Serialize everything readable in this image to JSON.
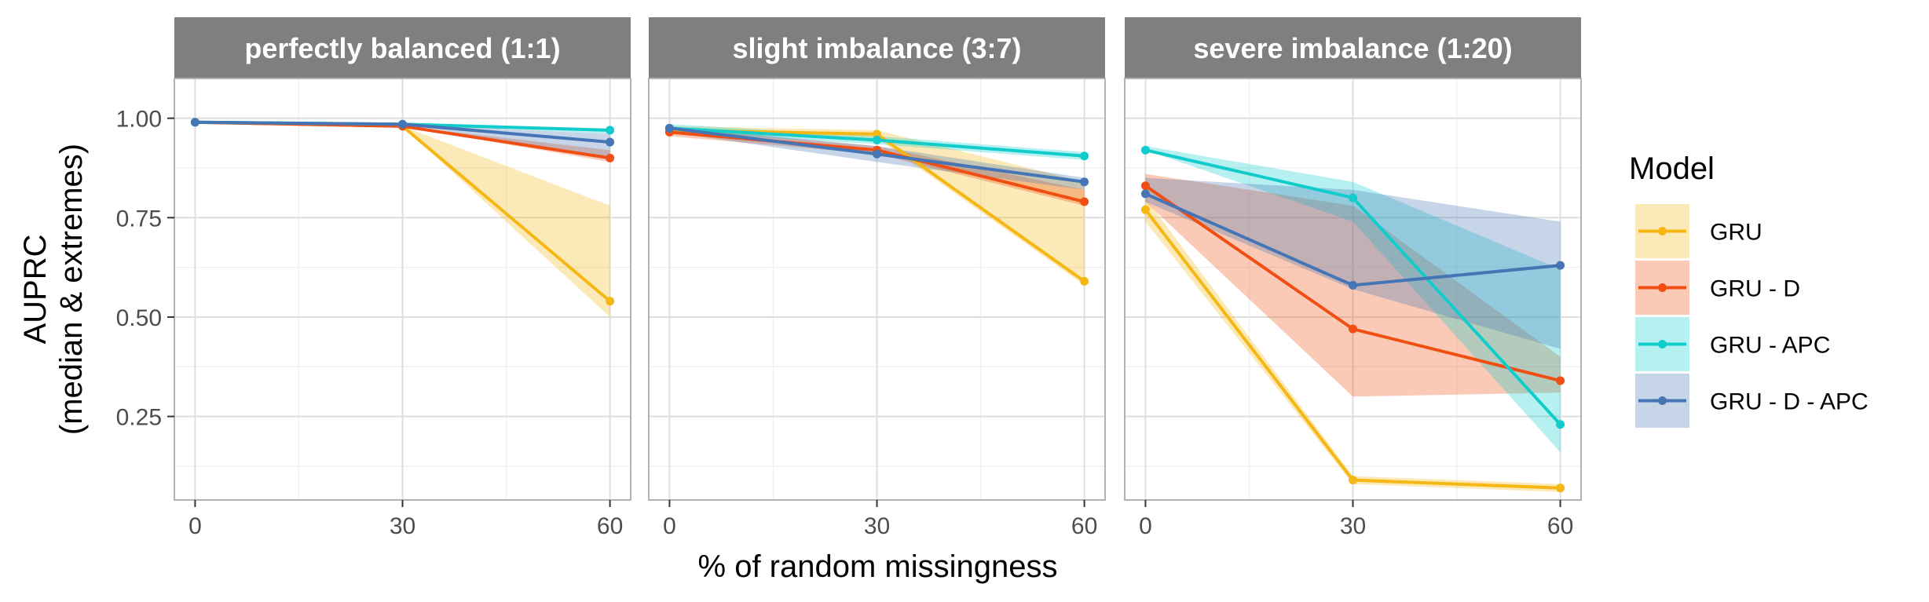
{
  "chart_data": {
    "type": "line",
    "xlabel": "% of random missingness",
    "ylabel": [
      "AUPRC",
      "(median & extremes)"
    ],
    "x": [
      0,
      30,
      60
    ],
    "xlim": [
      -3,
      63
    ],
    "ylim": [
      0.04,
      1.1
    ],
    "x_ticks": [
      "0",
      "30",
      "60"
    ],
    "y_ticks": [
      "0.25",
      "0.50",
      "0.75",
      "1.00"
    ],
    "y_tick_values": [
      0.25,
      0.5,
      0.75,
      1.0
    ],
    "grid": true,
    "legend": {
      "title": "Model",
      "position": "right",
      "entries": [
        "GRU",
        "GRU - D",
        "GRU - APC",
        "GRU - D - APC"
      ]
    },
    "colors": {
      "GRU": "#F5B714",
      "GRU - D": "#F04E12",
      "GRU - APC": "#12CCCC",
      "GRU - D - APC": "#4575B4"
    },
    "ribbon_alpha": 0.3,
    "panels": [
      {
        "title": "perfectly balanced (1:1)",
        "series": [
          {
            "name": "GRU",
            "median": [
              0.99,
              0.98,
              0.54
            ],
            "min": [
              0.99,
              0.98,
              0.5
            ],
            "max": [
              0.99,
              0.98,
              0.78
            ]
          },
          {
            "name": "GRU - D",
            "median": [
              0.99,
              0.98,
              0.9
            ],
            "min": [
              0.99,
              0.98,
              0.89
            ],
            "max": [
              0.99,
              0.98,
              0.92
            ]
          },
          {
            "name": "GRU - APC",
            "median": [
              0.99,
              0.985,
              0.97
            ],
            "min": [
              0.99,
              0.985,
              0.96
            ],
            "max": [
              0.99,
              0.985,
              0.97
            ]
          },
          {
            "name": "GRU - D - APC",
            "median": [
              0.99,
              0.985,
              0.94
            ],
            "min": [
              0.99,
              0.985,
              0.9
            ],
            "max": [
              0.99,
              0.985,
              0.96
            ]
          }
        ]
      },
      {
        "title": "slight imbalance (3:7)",
        "series": [
          {
            "name": "GRU",
            "median": [
              0.97,
              0.96,
              0.59
            ],
            "min": [
              0.96,
              0.95,
              0.58
            ],
            "max": [
              0.98,
              0.97,
              0.84
            ]
          },
          {
            "name": "GRU - D",
            "median": [
              0.965,
              0.92,
              0.79
            ],
            "min": [
              0.955,
              0.91,
              0.78
            ],
            "max": [
              0.975,
              0.93,
              0.82
            ]
          },
          {
            "name": "GRU - APC",
            "median": [
              0.975,
              0.945,
              0.905
            ],
            "min": [
              0.965,
              0.935,
              0.895
            ],
            "max": [
              0.985,
              0.955,
              0.915
            ]
          },
          {
            "name": "GRU - D - APC",
            "median": [
              0.975,
              0.91,
              0.84
            ],
            "min": [
              0.965,
              0.89,
              0.82
            ],
            "max": [
              0.98,
              0.93,
              0.85
            ]
          }
        ]
      },
      {
        "title": "severe imbalance (1:20)",
        "series": [
          {
            "name": "GRU",
            "median": [
              0.77,
              0.09,
              0.07
            ],
            "min": [
              0.74,
              0.08,
              0.06
            ],
            "max": [
              0.8,
              0.1,
              0.08
            ]
          },
          {
            "name": "GRU - D",
            "median": [
              0.83,
              0.47,
              0.34
            ],
            "min": [
              0.79,
              0.3,
              0.31
            ],
            "max": [
              0.86,
              0.78,
              0.4
            ]
          },
          {
            "name": "GRU - APC",
            "median": [
              0.92,
              0.8,
              0.23
            ],
            "min": [
              0.92,
              0.74,
              0.16
            ],
            "max": [
              0.93,
              0.84,
              0.62
            ]
          },
          {
            "name": "GRU - D - APC",
            "median": [
              0.81,
              0.58,
              0.63
            ],
            "min": [
              0.79,
              0.57,
              0.42
            ],
            "max": [
              0.85,
              0.82,
              0.74
            ]
          }
        ]
      }
    ]
  }
}
